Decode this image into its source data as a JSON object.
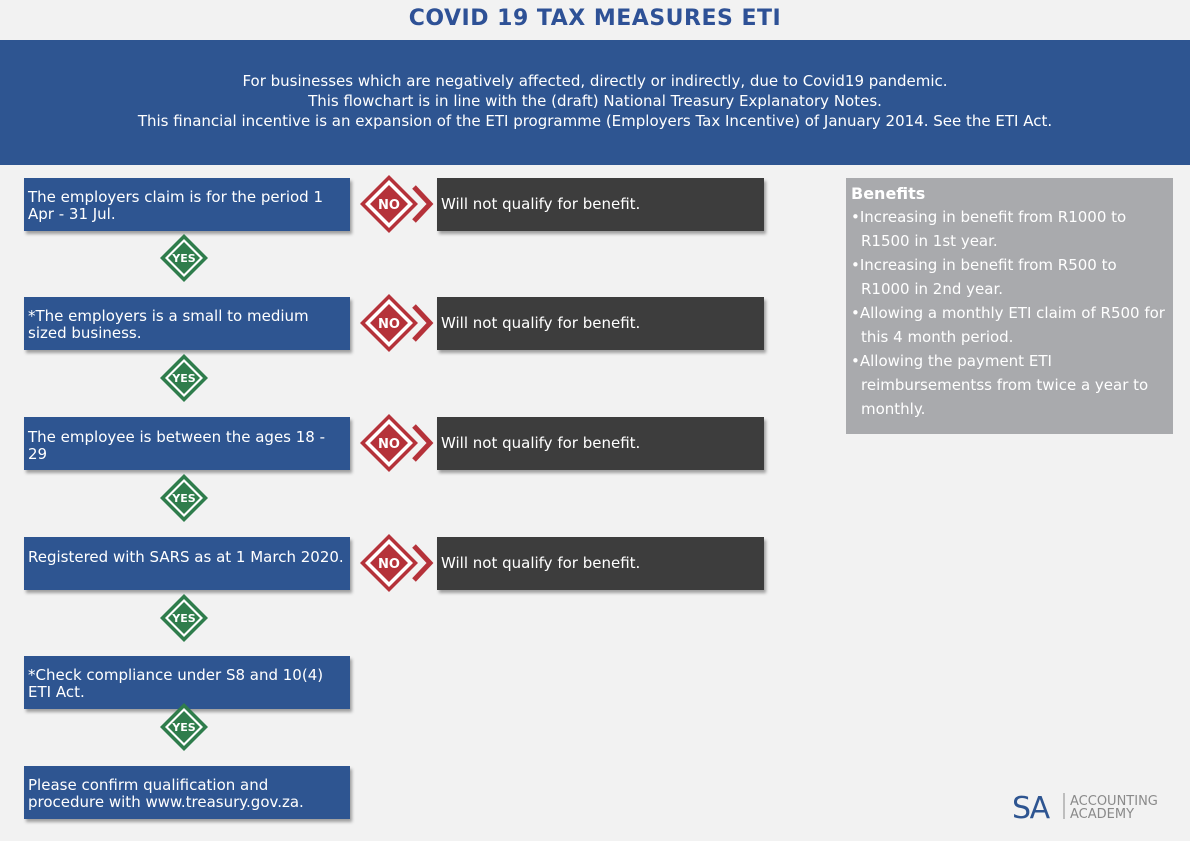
{
  "header": {
    "title": "COVID 19 TAX MEASURES ETI",
    "lines": [
      "For businesses which are negatively affected, directly or indirectly, due to Covid19 pandemic.",
      "This flowchart is in line with the (draft) National Treasury Explanatory Notes.",
      "This financial incentive is an expansion of the ETI programme (Employers Tax Incentive) of January 2014. See the ETI Act."
    ]
  },
  "flow": {
    "steps": [
      "The employers claim is for the period 1 Apr - 31 Jul.",
      "*The employers is a small to medium sized business.",
      "The employee is between the ages 18 - 29",
      "Registered with SARS as at 1 March 2020.",
      "*Check compliance under S8 and 10(4) ETI Act.",
      "Please confirm qualification and procedure with www.treasury.gov.za."
    ],
    "no_label": "NO",
    "yes_label": "YES",
    "result_text": "Will not qualify for benefit."
  },
  "benefits": {
    "title": "Benefits",
    "items": [
      "Increasing in benefit from R1000 to R1500 in 1st year.",
      "Increasing in benefit from R500 to R1000 in 2nd  year.",
      "Allowing a monthly ETI claim of R500 for this 4 month period.",
      "Allowing the payment ETI reimbursementss from twice a year to monthly."
    ]
  },
  "logo": {
    "mark": "SA",
    "line1": "ACCOUNTING",
    "line2": "ACADEMY"
  },
  "colors": {
    "step_blue": "#2e5591",
    "result_grey": "#3d3d3d",
    "no_red": "#b5323a",
    "yes_green": "#2f7d4c"
  }
}
